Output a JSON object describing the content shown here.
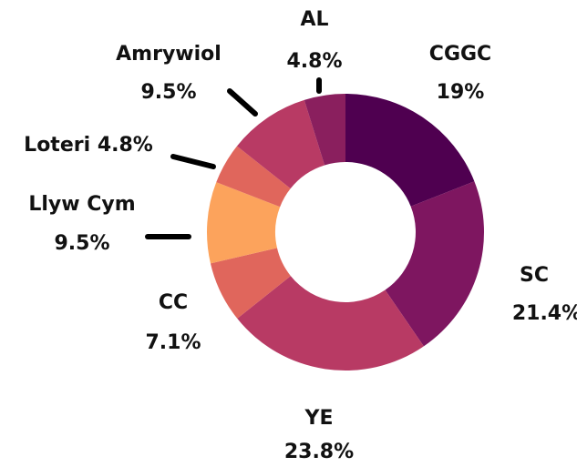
{
  "chart_data": {
    "type": "donut",
    "categories": [
      "CGGC",
      "SC",
      "YE",
      "CC",
      "Llyw Cym",
      "Loteri",
      "Amrywiol",
      "AL"
    ],
    "values": [
      19,
      21.4,
      23.8,
      7.1,
      9.5,
      4.8,
      9.5,
      4.8
    ],
    "value_labels": [
      "19%",
      "21.4%",
      "23.8%",
      "7.1%",
      "9.5%",
      "4.8%",
      "9.5%",
      "4.8%"
    ],
    "colors": [
      "#4f0050",
      "#7e1660",
      "#b83a64",
      "#e0665c",
      "#fca35c",
      "#e0665c",
      "#b83a64",
      "#8a1f5e"
    ]
  }
}
